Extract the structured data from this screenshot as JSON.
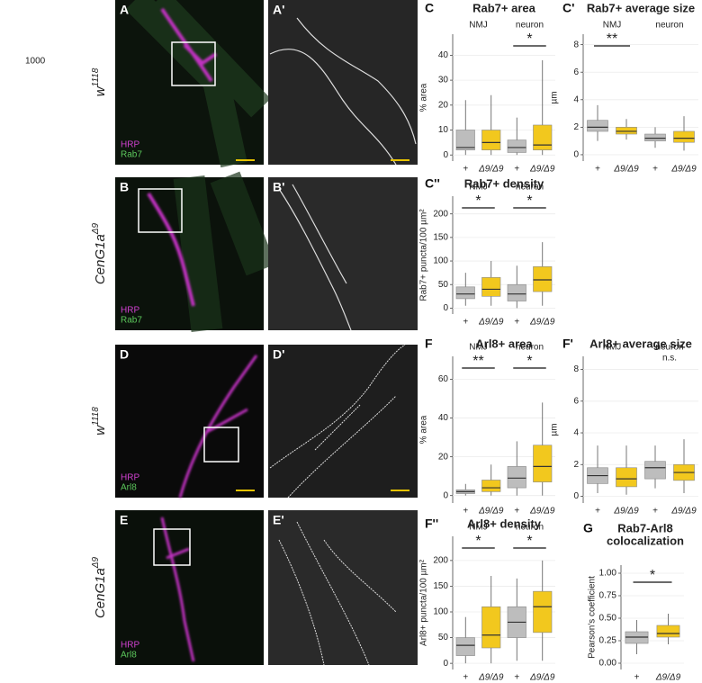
{
  "side_note": "1000",
  "images": [
    {
      "label": "A",
      "detail_label": "A'",
      "genotype": {
        "base": "w",
        "sup": "1118"
      },
      "stains": [
        "HRP",
        "Rab7"
      ]
    },
    {
      "label": "B",
      "detail_label": "B'",
      "genotype": {
        "base": "CenG1a",
        "sup": "Δ9"
      },
      "stains": [
        "HRP",
        "Rab7"
      ]
    },
    {
      "label": "D",
      "detail_label": "D'",
      "genotype": {
        "base": "w",
        "sup": "1118"
      },
      "stains": [
        "HRP",
        "Arl8"
      ]
    },
    {
      "label": "E",
      "detail_label": "E'",
      "genotype": {
        "base": "CenG1a",
        "sup": "Δ9"
      },
      "stains": [
        "HRP",
        "Arl8"
      ]
    }
  ],
  "chart_data": [
    {
      "type": "box",
      "panel": "C",
      "title": [
        "Rab7+ area"
      ],
      "ylabel": "% area",
      "groups": [
        "NMJ",
        "neuron"
      ],
      "group_annotations": [
        null,
        "*"
      ],
      "categories": [
        "+",
        "Δ9/Δ9",
        "+",
        "Δ9/Δ9"
      ],
      "colors": [
        "#bdbdbd",
        "#f2c81e",
        "#bdbdbd",
        "#f2c81e"
      ],
      "whisker_low": [
        0,
        0,
        0,
        0
      ],
      "q1": [
        2,
        2,
        1,
        2
      ],
      "median": [
        3,
        5,
        3,
        4
      ],
      "q3": [
        10,
        10,
        6,
        12
      ],
      "whisker_high": [
        22,
        24,
        15,
        38
      ],
      "ylim": [
        -1,
        47
      ],
      "yticks": [
        0,
        10,
        20,
        30,
        40
      ]
    },
    {
      "type": "box",
      "panel": "C'",
      "title": [
        "Rab7+ average size"
      ],
      "ylabel": "µm",
      "groups": [
        "NMJ",
        "neuron"
      ],
      "group_annotations": [
        "**",
        null
      ],
      "categories": [
        "+",
        "Δ9/Δ9",
        "+",
        "Δ9/Δ9"
      ],
      "colors": [
        "#bdbdbd",
        "#f2c81e",
        "#bdbdbd",
        "#f2c81e"
      ],
      "whisker_low": [
        1.0,
        1.1,
        0.5,
        0.3
      ],
      "q1": [
        1.7,
        1.5,
        1.0,
        0.9
      ],
      "median": [
        2.0,
        1.7,
        1.2,
        1.2
      ],
      "q3": [
        2.5,
        2.0,
        1.5,
        1.7
      ],
      "whisker_high": [
        3.6,
        2.6,
        2.0,
        2.8
      ],
      "ylim": [
        -0.2,
        8.5
      ],
      "yticks": [
        0,
        2,
        4,
        6,
        8
      ]
    },
    {
      "type": "box",
      "panel": "C''",
      "title": [
        "Rab7+ density"
      ],
      "ylabel": "Rab7+ puncta/100 µm²",
      "groups": [
        "NMJ",
        "neuron"
      ],
      "group_annotations": [
        "*",
        "*"
      ],
      "categories": [
        "+",
        "Δ9/Δ9",
        "+",
        "Δ9/Δ9"
      ],
      "colors": [
        "#bdbdbd",
        "#f2c81e",
        "#bdbdbd",
        "#f2c81e"
      ],
      "whisker_low": [
        5,
        5,
        0,
        5
      ],
      "q1": [
        20,
        25,
        15,
        35
      ],
      "median": [
        30,
        40,
        30,
        60
      ],
      "q3": [
        45,
        65,
        50,
        88
      ],
      "whisker_high": [
        75,
        100,
        90,
        140
      ],
      "ylim": [
        -5,
        230
      ],
      "yticks": [
        0,
        50,
        100,
        150,
        200
      ]
    },
    {
      "type": "box",
      "panel": "F",
      "title": [
        "Arl8+ area"
      ],
      "ylabel": "% area",
      "groups": [
        "NMJ",
        "neuron"
      ],
      "group_annotations": [
        "**",
        "*"
      ],
      "categories": [
        "+",
        "Δ9/Δ9",
        "+",
        "Δ9/Δ9"
      ],
      "colors": [
        "#bdbdbd",
        "#f2c81e",
        "#bdbdbd",
        "#f2c81e"
      ],
      "whisker_low": [
        0,
        0,
        0,
        0
      ],
      "q1": [
        1,
        2,
        4,
        7
      ],
      "median": [
        2,
        4,
        9,
        15
      ],
      "q3": [
        3,
        8,
        15,
        26
      ],
      "whisker_high": [
        6,
        16,
        28,
        48
      ],
      "ylim": [
        -2,
        70
      ],
      "yticks": [
        0,
        20,
        40,
        60
      ]
    },
    {
      "type": "box",
      "panel": "F'",
      "title": [
        "Arl8+ average size"
      ],
      "ylabel": "µm",
      "groups": [
        "NMJ",
        "neuron"
      ],
      "group_annotations": [
        null,
        "n.s."
      ],
      "categories": [
        "+",
        "Δ9/Δ9",
        "+",
        "Δ9/Δ9"
      ],
      "colors": [
        "#bdbdbd",
        "#f2c81e",
        "#bdbdbd",
        "#f2c81e"
      ],
      "whisker_low": [
        0.2,
        0.1,
        0.5,
        0.2
      ],
      "q1": [
        0.8,
        0.6,
        1.1,
        1.0
      ],
      "median": [
        1.3,
        1.1,
        1.8,
        1.5
      ],
      "q3": [
        1.8,
        1.8,
        2.2,
        2.0
      ],
      "whisker_high": [
        3.2,
        3.2,
        3.2,
        3.6
      ],
      "ylim": [
        -0.2,
        8.6
      ],
      "yticks": [
        0,
        2,
        4,
        6,
        8
      ]
    },
    {
      "type": "box",
      "panel": "F''",
      "title": [
        "Arl8+ density"
      ],
      "ylabel": "Arl8+ puncta/100 µm²",
      "groups": [
        "NMJ",
        "neuron"
      ],
      "group_annotations": [
        "*",
        "*"
      ],
      "categories": [
        "+",
        "Δ9/Δ9",
        "+",
        "Δ9/Δ9"
      ],
      "colors": [
        "#bdbdbd",
        "#f2c81e",
        "#bdbdbd",
        "#f2c81e"
      ],
      "whisker_low": [
        0,
        0,
        5,
        5
      ],
      "q1": [
        15,
        30,
        50,
        60
      ],
      "median": [
        35,
        55,
        80,
        110
      ],
      "q3": [
        50,
        110,
        110,
        140
      ],
      "whisker_high": [
        90,
        170,
        165,
        200
      ],
      "ylim": [
        -5,
        240
      ],
      "yticks": [
        0,
        50,
        100,
        150,
        200
      ]
    },
    {
      "type": "box",
      "panel": "G",
      "title": [
        "Rab7-Arl8",
        "colocalization"
      ],
      "ylabel": "Pearson's coefficient",
      "groups": [],
      "group_annotations": [],
      "annotation": "*",
      "categories": [
        "+",
        "Δ9/Δ9"
      ],
      "colors": [
        "#bdbdbd",
        "#f2c81e"
      ],
      "whisker_low": [
        0.1,
        0.21
      ],
      "q1": [
        0.22,
        0.29
      ],
      "median": [
        0.29,
        0.33
      ],
      "q3": [
        0.35,
        0.42
      ],
      "whisker_high": [
        0.48,
        0.55
      ],
      "ylim": [
        -0.03,
        1.05
      ],
      "yticks": [
        {
          "value": 0,
          "label": "0.00"
        },
        {
          "value": 0.25,
          "label": "0.25"
        },
        {
          "value": 0.5,
          "label": "0.50"
        },
        {
          "value": 0.75,
          "label": "0.75"
        },
        {
          "value": 1,
          "label": "1.00"
        }
      ]
    }
  ]
}
